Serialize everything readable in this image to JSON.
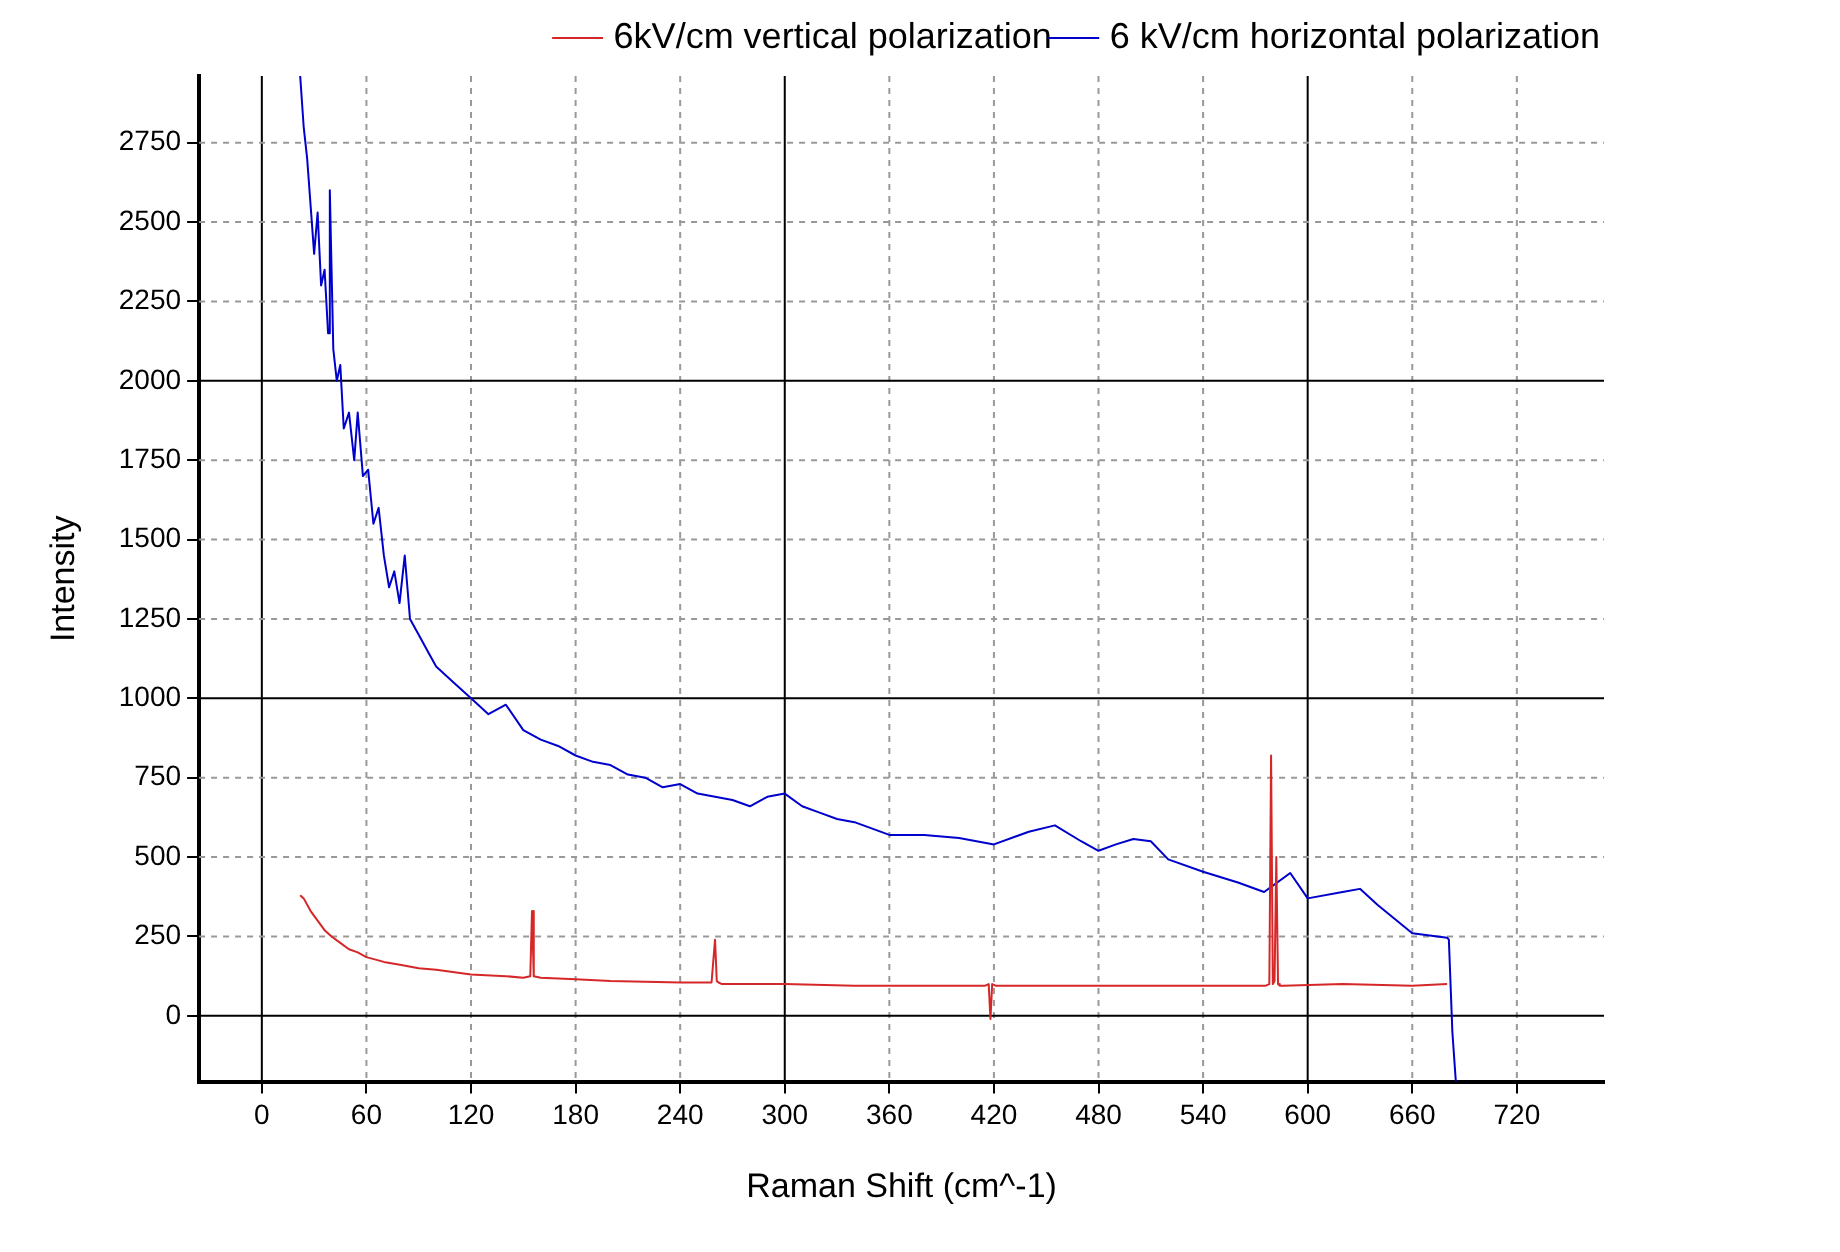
{
  "chart_data": {
    "type": "line",
    "xlabel": "Raman Shift (cm^-1)",
    "ylabel": "Intensity",
    "xlim": [
      -36,
      770
    ],
    "xticks": [
      0,
      60,
      120,
      180,
      240,
      300,
      360,
      420,
      480,
      540,
      600,
      660,
      720
    ],
    "ylim": [
      -207,
      2960
    ],
    "yticks": [
      0,
      250,
      500,
      750,
      1000,
      1250,
      1500,
      1750,
      2000,
      2250,
      2500,
      2750
    ],
    "grid": true,
    "legend": "top right",
    "marker": "none",
    "line_style": "solid",
    "series": [
      {
        "name": "6kV/cm vertical polarization",
        "color": "#d62728",
        "x": [
          22,
          24,
          28,
          32,
          36,
          40,
          45,
          50,
          55,
          60,
          70,
          80,
          90,
          100,
          120,
          140,
          150,
          154,
          155,
          156,
          160,
          180,
          200,
          240,
          258,
          260,
          261,
          262,
          264,
          280,
          300,
          340,
          380,
          415,
          417,
          418,
          419,
          421,
          460,
          500,
          540,
          576,
          578,
          579,
          580,
          581,
          582,
          583,
          584,
          586,
          620,
          660,
          680
        ],
        "values": [
          380,
          370,
          330,
          300,
          270,
          250,
          230,
          210,
          200,
          185,
          170,
          160,
          150,
          145,
          130,
          125,
          120,
          125,
          330,
          125,
          120,
          115,
          110,
          105,
          105,
          240,
          110,
          105,
          100,
          100,
          100,
          95,
          95,
          95,
          100,
          -10,
          100,
          95,
          95,
          95,
          95,
          95,
          100,
          820,
          100,
          110,
          500,
          100,
          95,
          95,
          100,
          95,
          100
        ]
      },
      {
        "name": "6 kV/cm horizontal polarization",
        "color": "#0000cc",
        "x": [
          22,
          24,
          26,
          28,
          30,
          32,
          34,
          36,
          38,
          39,
          41,
          43,
          45,
          47,
          50,
          53,
          55,
          58,
          61,
          64,
          67,
          70,
          73,
          76,
          79,
          82,
          85,
          90,
          95,
          100,
          110,
          120,
          130,
          140,
          150,
          160,
          170,
          180,
          190,
          200,
          210,
          220,
          230,
          240,
          250,
          260,
          270,
          280,
          290,
          300,
          310,
          320,
          330,
          340,
          360,
          380,
          400,
          420,
          440,
          455,
          470,
          480,
          490,
          500,
          510,
          520,
          540,
          560,
          575,
          590,
          600,
          620,
          630,
          640,
          660,
          680,
          681,
          683,
          685
        ],
        "values": [
          2960,
          2800,
          2700,
          2550,
          2400,
          2530,
          2300,
          2350,
          2150,
          2600,
          2100,
          2000,
          2050,
          1850,
          1900,
          1750,
          1900,
          1700,
          1720,
          1550,
          1600,
          1450,
          1350,
          1400,
          1300,
          1450,
          1250,
          1200,
          1150,
          1100,
          1050,
          1000,
          950,
          980,
          900,
          870,
          850,
          820,
          800,
          790,
          760,
          750,
          720,
          730,
          700,
          690,
          680,
          660,
          690,
          700,
          660,
          640,
          620,
          610,
          570,
          570,
          560,
          540,
          580,
          600,
          550,
          520,
          540,
          557,
          550,
          493,
          454,
          420,
          390,
          450,
          370,
          390,
          400,
          350,
          260,
          246,
          240,
          -50,
          -207
        ]
      }
    ]
  }
}
